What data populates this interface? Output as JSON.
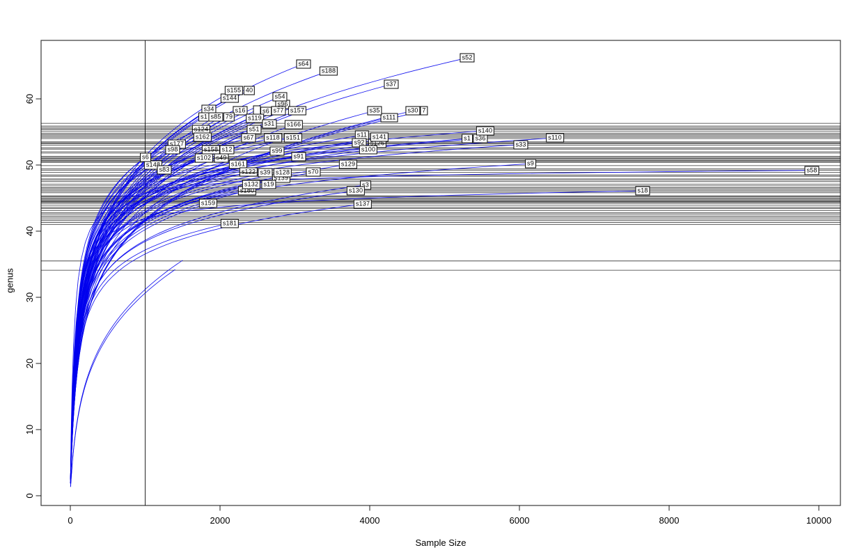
{
  "chart_data": {
    "type": "line",
    "variant": "rarefaction-curves",
    "title": "",
    "xlabel": "Sample Size",
    "ylabel": "genus",
    "xlim": [
      -390,
      10290
    ],
    "ylim": [
      -1.5,
      68.8
    ],
    "x_ticks": [
      0,
      2000,
      4000,
      6000,
      8000,
      10000
    ],
    "y_ticks": [
      0,
      10,
      20,
      30,
      40,
      50,
      60
    ],
    "grid": false,
    "legend": null,
    "curve_color": "#0000ee",
    "line_color": "#000000",
    "vline_x": 1000,
    "hlines_y": [
      56.3,
      55.9,
      55.7,
      55.5,
      55.3,
      55.05,
      54.8,
      54.6,
      54.4,
      54.2,
      54.0,
      53.5,
      53.35,
      53.2,
      53.0,
      52.6,
      52.4,
      52.0,
      51.8,
      51.3,
      51.15,
      51.0,
      50.85,
      50.7,
      50.55,
      50.4,
      49.9,
      49.4,
      49.2,
      48.9,
      48.5,
      48.3,
      47.9,
      47.75,
      47.5,
      47.1,
      46.85,
      46.6,
      46.4,
      46.2,
      46.0,
      45.8,
      45.35,
      45.2,
      45.05,
      44.9,
      44.75,
      44.6,
      44.5,
      44.35,
      44.2,
      43.9,
      43.6,
      43.4,
      43.1,
      42.8,
      42.6,
      42.3,
      42.1,
      41.85,
      41.6,
      41.3,
      41.0,
      35.5,
      34.1
    ],
    "curves": [
      {
        "label": "s52",
        "x": 5302,
        "y": 66.2
      },
      {
        "label": "s64",
        "x": 3116,
        "y": 65.3
      },
      {
        "label": "s188",
        "x": 3451,
        "y": 64.2
      },
      {
        "label": "s37",
        "x": 4288,
        "y": 62.2
      },
      {
        "label": "40",
        "x": 2391,
        "y": 61.3,
        "fragment": true
      },
      {
        "label": "s144",
        "x": 2130,
        "y": 60.1
      },
      {
        "label": "s155",
        "x": 2186,
        "y": 61.3
      },
      {
        "label": "s96",
        "x": 2837,
        "y": 59.2
      },
      {
        "label": "s54",
        "x": 2800,
        "y": 60.3
      },
      {
        "label": "s34",
        "x": 1851,
        "y": 58.4
      },
      {
        "label": "s16",
        "x": 2270,
        "y": 58.2
      },
      {
        "label": "",
        "x": 2493,
        "y": 58.3,
        "fragment": true
      },
      {
        "label": "s6",
        "x": 2614,
        "y": 58.1,
        "fragment": true
      },
      {
        "label": "s77",
        "x": 2781,
        "y": 58.2
      },
      {
        "label": "s157",
        "x": 3033,
        "y": 58.2
      },
      {
        "label": "s111",
        "x": 4260,
        "y": 57.2
      },
      {
        "label": "s35",
        "x": 4065,
        "y": 58.2
      },
      {
        "label": "7",
        "x": 4726,
        "y": 58.2,
        "fragment": true
      },
      {
        "label": "s30",
        "x": 4577,
        "y": 58.2
      },
      {
        "label": "s1",
        "x": 1786,
        "y": 57.3,
        "fragment": true
      },
      {
        "label": "79",
        "x": 2121,
        "y": 57.3,
        "fragment": true
      },
      {
        "label": "s85",
        "x": 1944,
        "y": 57.3
      },
      {
        "label": "s119",
        "x": 2465,
        "y": 57.1
      },
      {
        "label": "s31",
        "x": 2660,
        "y": 56.2
      },
      {
        "label": "s166",
        "x": 2986,
        "y": 56.1
      },
      {
        "label": "s124",
        "x": 1749,
        "y": 55.4,
        "strike": true
      },
      {
        "label": "s51",
        "x": 2456,
        "y": 55.4
      },
      {
        "label": "s162",
        "x": 1767,
        "y": 54.2
      },
      {
        "label": "s67",
        "x": 2381,
        "y": 54.1
      },
      {
        "label": "s118",
        "x": 2707,
        "y": 54.1
      },
      {
        "label": "s151",
        "x": 2977,
        "y": 54.1
      },
      {
        "label": "s11",
        "x": 3898,
        "y": 54.5
      },
      {
        "label": "s126",
        "x": 4102,
        "y": 53.3,
        "fragment": true,
        "strike": true
      },
      {
        "label": "s92",
        "x": 3860,
        "y": 53.4
      },
      {
        "label": "s141",
        "x": 4130,
        "y": 54.2
      },
      {
        "label": "s1",
        "x": 5302,
        "y": 54.0,
        "fragment": true
      },
      {
        "label": "s36",
        "x": 5479,
        "y": 54.0
      },
      {
        "label": "s140",
        "x": 5544,
        "y": 55.2
      },
      {
        "label": "s110",
        "x": 6474,
        "y": 54.1
      },
      {
        "label": "s33",
        "x": 6019,
        "y": 53.1
      },
      {
        "label": "s100",
        "x": 3981,
        "y": 52.3
      },
      {
        "label": "s177",
        "x": 1423,
        "y": 53.2
      },
      {
        "label": "s98",
        "x": 1367,
        "y": 52.3
      },
      {
        "label": "s158",
        "x": 1879,
        "y": 52.3,
        "fragment": true,
        "strike": true
      },
      {
        "label": "s12",
        "x": 2093,
        "y": 52.3
      },
      {
        "label": "s99",
        "x": 2763,
        "y": 52.1
      },
      {
        "label": "s148",
        "x": 1107,
        "y": 50.0
      },
      {
        "label": "s6",
        "x": 1005,
        "y": 51.2
      },
      {
        "label": "s49",
        "x": 2019,
        "y": 51.1,
        "fragment": true,
        "strike": true
      },
      {
        "label": "s102",
        "x": 1786,
        "y": 51.1
      },
      {
        "label": "s91",
        "x": 3051,
        "y": 51.3
      },
      {
        "label": "s129",
        "x": 3712,
        "y": 50.1
      },
      {
        "label": "s9",
        "x": 6149,
        "y": 50.2
      },
      {
        "label": "s161",
        "x": 2242,
        "y": 50.1
      },
      {
        "label": "s83",
        "x": 1256,
        "y": 49.3
      },
      {
        "label": "s122",
        "x": 2381,
        "y": 48.9,
        "strike": true
      },
      {
        "label": "s39",
        "x": 2605,
        "y": 48.8
      },
      {
        "label": "s70",
        "x": 3247,
        "y": 48.9
      },
      {
        "label": "s58",
        "x": 9907,
        "y": 49.2,
        "b": 0.015
      },
      {
        "label": "s139",
        "x": 2819,
        "y": 48.0
      },
      {
        "label": "s128",
        "x": 2837,
        "y": 48.8
      },
      {
        "label": "s180",
        "x": 2363,
        "y": 46.1,
        "strike": true
      },
      {
        "label": "s132",
        "x": 2419,
        "y": 47.05
      },
      {
        "label": "s19",
        "x": 2651,
        "y": 47.05
      },
      {
        "label": "s3",
        "x": 3944,
        "y": 47.0
      },
      {
        "label": "s130",
        "x": 3814,
        "y": 46.1
      },
      {
        "label": "s18",
        "x": 7647,
        "y": 46.1,
        "b": 0.03
      },
      {
        "label": "s159",
        "x": 1842,
        "y": 44.2
      },
      {
        "label": "s137",
        "x": 3907,
        "y": 44.1
      },
      {
        "label": "s181",
        "x": 2130,
        "y": 41.2
      },
      {
        "label": "",
        "x": 1500,
        "y": 35.6,
        "hidden": true,
        "b": 0.3
      },
      {
        "label": "",
        "x": 1400,
        "y": 34.2,
        "hidden": true,
        "b": 0.3
      }
    ]
  }
}
